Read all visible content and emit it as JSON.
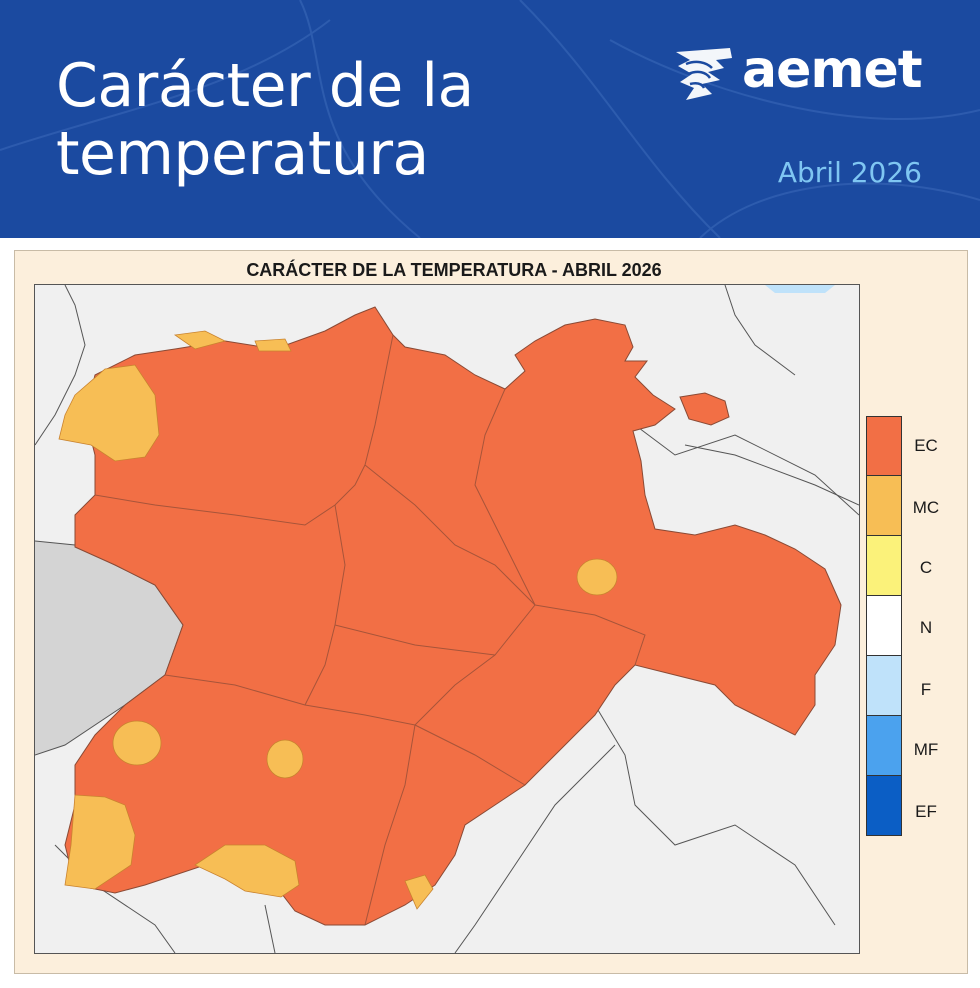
{
  "header": {
    "title": "Carácter de la\ntemperatura",
    "logo_text": "aemet",
    "month": "Abril 2026",
    "colors": {
      "background": "#1b4aa0",
      "month_text": "#7fc6f2"
    }
  },
  "map": {
    "title": "CARÁCTER DE LA TEMPERATURA - ABRIL 2026",
    "region_color": "#f26f45",
    "outside_color": "#f0f0f0",
    "portugal_color": "#d4d4d4",
    "predominant_class": "EC",
    "secondary_class_areas": "MC"
  },
  "legend": {
    "items": [
      {
        "label": "EC",
        "color": "#f26f45"
      },
      {
        "label": "MC",
        "color": "#f7be55"
      },
      {
        "label": "C",
        "color": "#fbf27a"
      },
      {
        "label": "N",
        "color": "#ffffff"
      },
      {
        "label": "F",
        "color": "#bfe2fa"
      },
      {
        "label": "MF",
        "color": "#4ba2ee"
      },
      {
        "label": "EF",
        "color": "#0b5ec5"
      }
    ]
  }
}
